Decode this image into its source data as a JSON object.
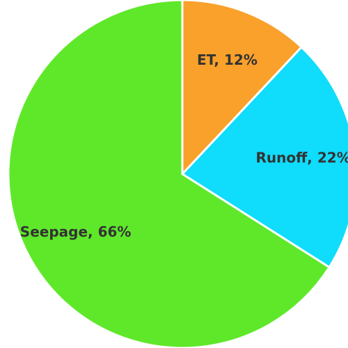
{
  "chart_data": {
    "type": "pie",
    "values": [
      12,
      22,
      66
    ],
    "value_labels": [
      "ET, 12%",
      "Runoff, 22%",
      "Seepage, 66%"
    ],
    "colors": [
      "#f9a12b",
      "#10dcfb",
      "#5fe82a"
    ]
  }
}
